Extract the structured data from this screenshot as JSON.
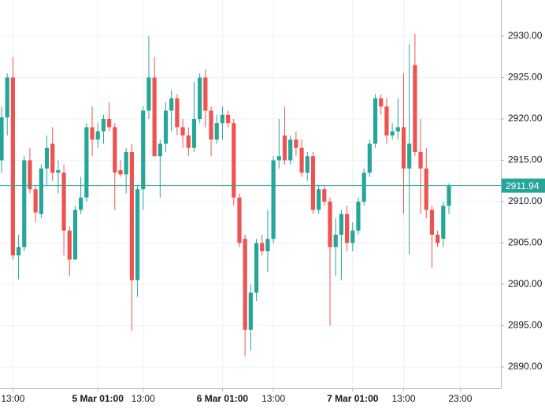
{
  "chart_data": {
    "type": "candlestick",
    "categories": [
      null,
      null,
      "13:00",
      null,
      null,
      null,
      null,
      null,
      null,
      null,
      null,
      null,
      null,
      null,
      null,
      null,
      null,
      "5 Mar 01:00",
      null,
      null,
      null,
      null,
      null,
      null,
      null,
      "13:00",
      null,
      null,
      null,
      null,
      null,
      null,
      null,
      null,
      null,
      null,
      null,
      null,
      null,
      "6 Mar 01:00",
      null,
      null,
      null,
      null,
      null,
      null,
      null,
      null,
      "13:00",
      null,
      null,
      null,
      null,
      null,
      null,
      null,
      null,
      null,
      null,
      null,
      null,
      null,
      "7 Mar 01:00",
      null,
      null,
      null,
      null,
      null,
      null,
      null,
      null,
      "13:00",
      null,
      null,
      null,
      null,
      null,
      null,
      null,
      null,
      null,
      "23:00"
    ],
    "open": [
      2915,
      2920.2,
      2925,
      2903.5,
      2904.5,
      2915,
      2911.5,
      2908.5,
      2914,
      2917,
      2913.5,
      2913.5,
      2906.5,
      2903,
      2909,
      2910.5,
      2919,
      2917.5,
      2918.5,
      2920,
      2919,
      2913.8,
      2913.3,
      2916,
      2900.5,
      2911.5,
      2921,
      2925,
      2915.5,
      2917,
      2921,
      2922.5,
      2919,
      2918,
      2916.5,
      2920,
      2925,
      2921,
      2917.5,
      2919.5,
      2920.5,
      2919.5,
      2910.5,
      2905.5,
      2894.5,
      2899,
      2905,
      2904,
      2905.5,
      2915,
      2918,
      2915,
      2917.5,
      2916.5,
      2913.5,
      2915.5,
      2909,
      2911.5,
      2910,
      2904.5,
      2906,
      2908.5,
      2905,
      2906.5,
      2910,
      2913.5,
      2917,
      2922.5,
      2921.5,
      2918,
      2918.5,
      2919,
      2914,
      2926.5,
      2916,
      2914,
      2909,
      2906,
      2905.5,
      2909.5,
      null,
      null
    ],
    "high": [
      2921.5,
      2925.5,
      2927.5,
      2906,
      2915.5,
      2916.5,
      2912,
      2914.5,
      2918,
      2919,
      2915,
      2914.5,
      2907,
      2909.5,
      2913,
      2919.5,
      2921.5,
      2919.5,
      2920.5,
      2922,
      2919.5,
      2915,
      2916.5,
      2917,
      2912,
      2921.5,
      2930,
      2927.5,
      2917.5,
      2922,
      2923.5,
      2923,
      2920,
      2919,
      2924.5,
      2925.5,
      2926,
      2921.5,
      2920.5,
      2921.5,
      2921,
      2920,
      2911,
      2906,
      2900,
      2905.5,
      2906,
      2909,
      2915.5,
      2920,
      2921.5,
      2918,
      2918.5,
      2917.5,
      2916,
      2916,
      2912,
      2912,
      2910.5,
      2908,
      2909,
      2909.5,
      2907.5,
      2910.5,
      2914,
      2917.5,
      2923,
      2923,
      2922.5,
      2919.5,
      2922.5,
      2925.5,
      2929,
      2930.3,
      2920,
      2916.5,
      2909.5,
      2906.5,
      2910,
      2912.2,
      null,
      null
    ],
    "low": [
      2913.5,
      2918,
      2903,
      2900.6,
      2904,
      2911,
      2907.5,
      2908,
      2912,
      2912.5,
      2911,
      2903.5,
      2901,
      2903,
      2908.5,
      2910,
      2915.5,
      2916.5,
      2917,
      2918.5,
      2909,
      2913,
      2911,
      2894.4,
      2898.5,
      2909,
      2920,
      2915.5,
      2910.5,
      2916,
      2918.5,
      2918,
      2916.5,
      2915.5,
      2916,
      2919.5,
      2919,
      2915.5,
      2917,
      2917.5,
      2919,
      2909.5,
      2904.5,
      2891.3,
      2892,
      2898,
      2903.5,
      2901.5,
      2905,
      2914,
      2914.5,
      2914.5,
      2915.5,
      2913,
      2912.5,
      2908.5,
      2908.5,
      2909.5,
      2895,
      2901,
      2900.5,
      2904,
      2904,
      2906,
      2909.5,
      2913,
      2916.5,
      2920.5,
      2917,
      2917.5,
      2917.5,
      2908.5,
      2903.6,
      2915.5,
      2908.5,
      2908,
      2902,
      2904.5,
      2904.5,
      2908.5,
      null,
      null
    ],
    "close": [
      2920.2,
      2925,
      2903.5,
      2904.5,
      2915,
      2911.5,
      2908.7,
      2914,
      2916.5,
      2913.5,
      2913.8,
      2906.5,
      2903,
      2909,
      2910.5,
      2919,
      2917.5,
      2918.5,
      2920,
      2919,
      2913.5,
      2913.3,
      2916,
      2900.5,
      2911.5,
      2921,
      2925,
      2915.5,
      2917,
      2921,
      2922.5,
      2919,
      2918,
      2916.5,
      2920,
      2925,
      2921,
      2917.5,
      2919.5,
      2920.5,
      2919.5,
      2910.5,
      2905,
      2894.5,
      2899,
      2905,
      2904,
      2905.5,
      2915,
      2915.5,
      2915,
      2917.5,
      2916.5,
      2913.5,
      2915.5,
      2909,
      2911.5,
      2910,
      2904.5,
      2906,
      2908.5,
      2905,
      2906.5,
      2910,
      2913.5,
      2917,
      2922.5,
      2921.5,
      2918,
      2918.5,
      2919,
      2914,
      2917,
      2916,
      2914,
      2909,
      2906,
      2905,
      2909.5,
      2911.94,
      null,
      null
    ],
    "up_color": "#26a69a",
    "down_color": "#ef5350",
    "last_price": 2911.94,
    "ylim": [
      2887.43,
      2934.38
    ],
    "yticks": [
      {
        "value": 2890,
        "label": "2890.00"
      },
      {
        "value": 2895,
        "label": "2895.00"
      },
      {
        "value": 2900,
        "label": "2900.00"
      },
      {
        "value": 2905,
        "label": "2905.00"
      },
      {
        "value": 2910,
        "label": "2910.00"
      },
      {
        "value": 2915,
        "label": "2915.00"
      },
      {
        "value": 2920,
        "label": "2920.00"
      },
      {
        "value": 2925,
        "label": "2925.00"
      },
      {
        "value": 2930,
        "label": "2930.00"
      }
    ],
    "grid": true
  }
}
